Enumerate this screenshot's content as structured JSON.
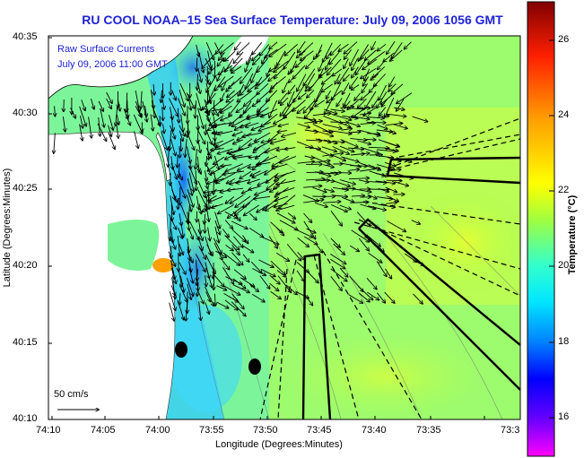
{
  "title": "RU COOL  NOAA–15  Sea Surface Temperature:  July 09, 2006 1056 GMT",
  "overlay": {
    "line1": "Raw Surface Currents",
    "line2": "July 09, 2006 11:00 GMT"
  },
  "scale_label": "50 cm/s",
  "axes": {
    "xlabel": "Longitude (Degrees:Minutes)",
    "ylabel": "Latitude (Degrees:Minutes)",
    "x_ticks": [
      "74:10",
      "74:05",
      "74:00",
      "73:55",
      "73:50",
      "73:45",
      "73:40",
      "73:35",
      "73:3"
    ],
    "y_ticks": [
      "40:35",
      "40:30",
      "40:25",
      "40:20",
      "40:15",
      "40:10"
    ]
  },
  "colorbar": {
    "label": "Temperature (°C)",
    "ticks": [
      "26",
      "24",
      "22",
      "20",
      "18",
      "16"
    ],
    "range": [
      15,
      27
    ],
    "colors": {
      "c15": "#ff00ff",
      "c16": "#6a00ff",
      "c17": "#0000ff",
      "c18": "#0080ff",
      "c19": "#00e6ff",
      "c20": "#33ffcc",
      "c21": "#a0ff40",
      "c22": "#ffff00",
      "c24": "#ffa000",
      "c26": "#ff2000",
      "c27": "#800000"
    }
  },
  "map": {
    "water_color": "#6ef0a6",
    "land_color": "#ffffff",
    "track_color": "#000000",
    "buoy_icon": "buoy-dot-icon",
    "scale_arrow_icon": "scale-arrow-icon"
  }
}
